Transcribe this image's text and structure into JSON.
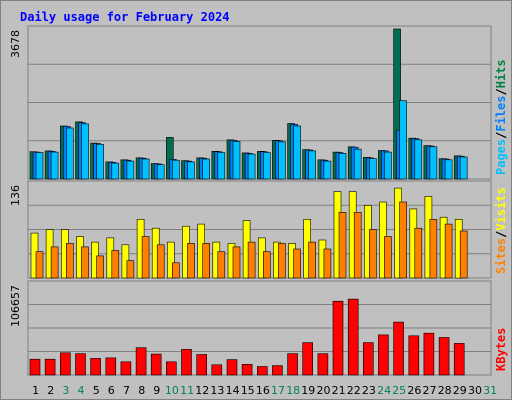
{
  "chart_data": {
    "type": "bar",
    "title": "Daily usage for February 2024",
    "days": [
      "1",
      "2",
      "3",
      "4",
      "5",
      "6",
      "7",
      "8",
      "9",
      "10",
      "11",
      "12",
      "13",
      "14",
      "15",
      "16",
      "17",
      "18",
      "19",
      "20",
      "21",
      "22",
      "23",
      "24",
      "25",
      "26",
      "27",
      "28",
      "29",
      "30",
      "31"
    ],
    "weekend_days": [
      "3",
      "4",
      "10",
      "11",
      "17",
      "18",
      "24",
      "25",
      "31"
    ],
    "panels": [
      {
        "id": "hits-files-pages",
        "scale_label": "3678",
        "ymax": 3678,
        "legend": [
          "Pages",
          "/",
          "Files",
          "/",
          "Hits"
        ],
        "legend_colors": [
          "#00c0ff",
          "#000000",
          "#0080ff",
          "#000000",
          "#008040"
        ],
        "series": [
          {
            "name": "Hits",
            "color": "#006f4f",
            "values": [
              670,
              690,
              1300,
              1400,
              880,
              420,
              470,
              520,
              380,
              1020,
              450,
              520,
              680,
              960,
              640,
              680,
              950,
              1360,
              720,
              470,
              660,
              790,
              530,
              700,
              3678,
              1000,
              820,
              500,
              570,
              0,
              0
            ]
          },
          {
            "name": "Files",
            "color": "#0080ff",
            "values": [
              660,
              680,
              1290,
              1380,
              870,
              410,
              460,
              510,
              370,
              480,
              440,
              510,
              670,
              950,
              630,
              670,
              940,
              1340,
              710,
              460,
              650,
              780,
              520,
              690,
              1200,
              990,
              810,
              490,
              560,
              0,
              0
            ]
          },
          {
            "name": "Pages",
            "color": "#00c0ff",
            "values": [
              650,
              660,
              1250,
              1350,
              850,
              390,
              440,
              490,
              350,
              460,
              420,
              490,
              650,
              920,
              610,
              650,
              910,
              1300,
              690,
              440,
              630,
              730,
              500,
              660,
              1920,
              960,
              790,
              470,
              540,
              0,
              0
            ]
          }
        ]
      },
      {
        "id": "visits-sites",
        "scale_label": "136",
        "ymax": 136,
        "legend": [
          "Sites",
          "/",
          "Visits"
        ],
        "legend_colors": [
          "#ff8000",
          "#000000",
          "#ffff00"
        ],
        "series": [
          {
            "name": "Visits",
            "color": "#ffff00",
            "values": [
              65,
              70,
              70,
              60,
              52,
              58,
              48,
              85,
              72,
              52,
              75,
              78,
              52,
              50,
              83,
              58,
              52,
              50,
              85,
              55,
              125,
              125,
              105,
              110,
              130,
              100,
              118,
              88,
              85,
              0,
              0
            ]
          },
          {
            "name": "Sites",
            "color": "#ff8000",
            "values": [
              38,
              45,
              50,
              45,
              32,
              40,
              25,
              60,
              48,
              22,
              50,
              50,
              38,
              45,
              52,
              38,
              50,
              42,
              52,
              42,
              95,
              95,
              70,
              60,
              110,
              72,
              85,
              78,
              68,
              0,
              0
            ]
          }
        ]
      },
      {
        "id": "kbytes",
        "scale_label": "106657",
        "ymax": 106657,
        "legend": [
          "KBytes"
        ],
        "legend_colors": [
          "#ff0000"
        ],
        "series": [
          {
            "name": "KBytes",
            "color": "#ff0000",
            "values": [
              18500,
              18500,
              26000,
              25000,
              19500,
              20000,
              15500,
              32000,
              24500,
              15500,
              30000,
              24000,
              12000,
              18000,
              12500,
              10000,
              11000,
              25000,
              38000,
              25000,
              86500,
              89000,
              38000,
              47000,
              62000,
              46000,
              49000,
              44000,
              37000,
              0,
              0
            ]
          }
        ]
      }
    ]
  }
}
